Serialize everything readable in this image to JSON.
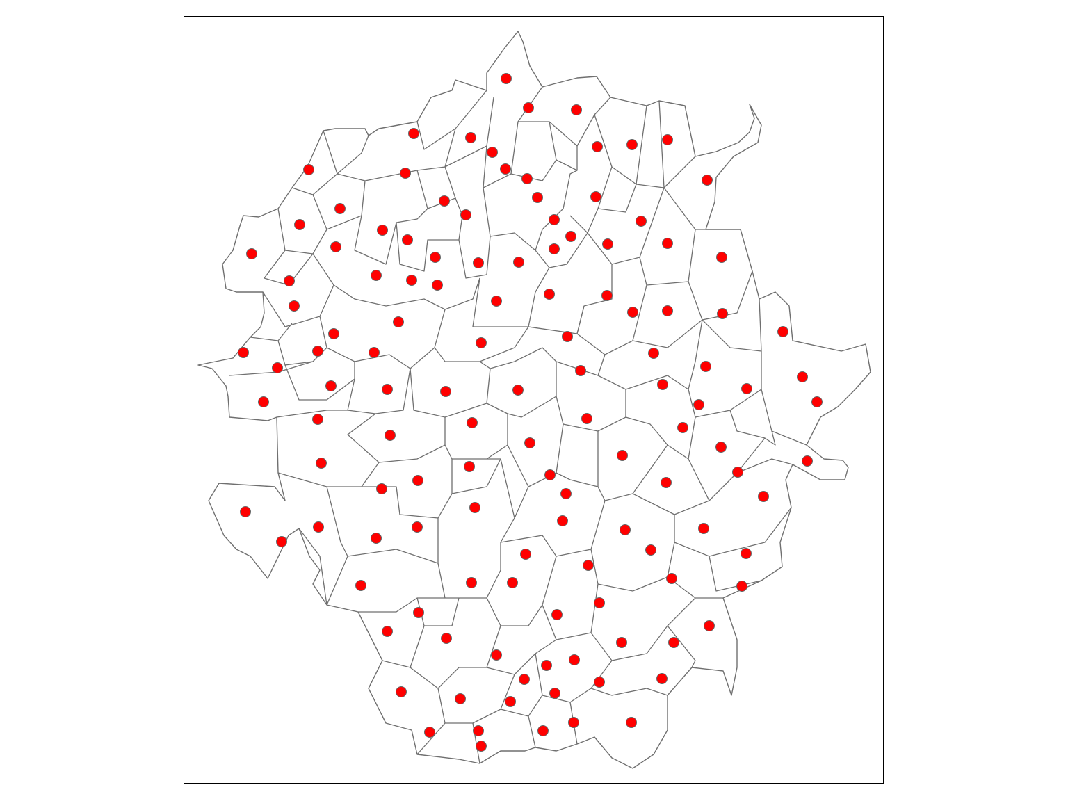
{
  "map": {
    "style": {
      "background_color": "#ffffff",
      "boundary_color": "#6f6f6f",
      "frame_color": "#000000",
      "point_fill_color": "#ff0000",
      "point_stroke_color": "#666666"
    },
    "features": {
      "district_polygons": "boundaries",
      "district_centroids": "points"
    },
    "counts": {
      "districts": 132,
      "centroid_points": 132
    }
  }
}
